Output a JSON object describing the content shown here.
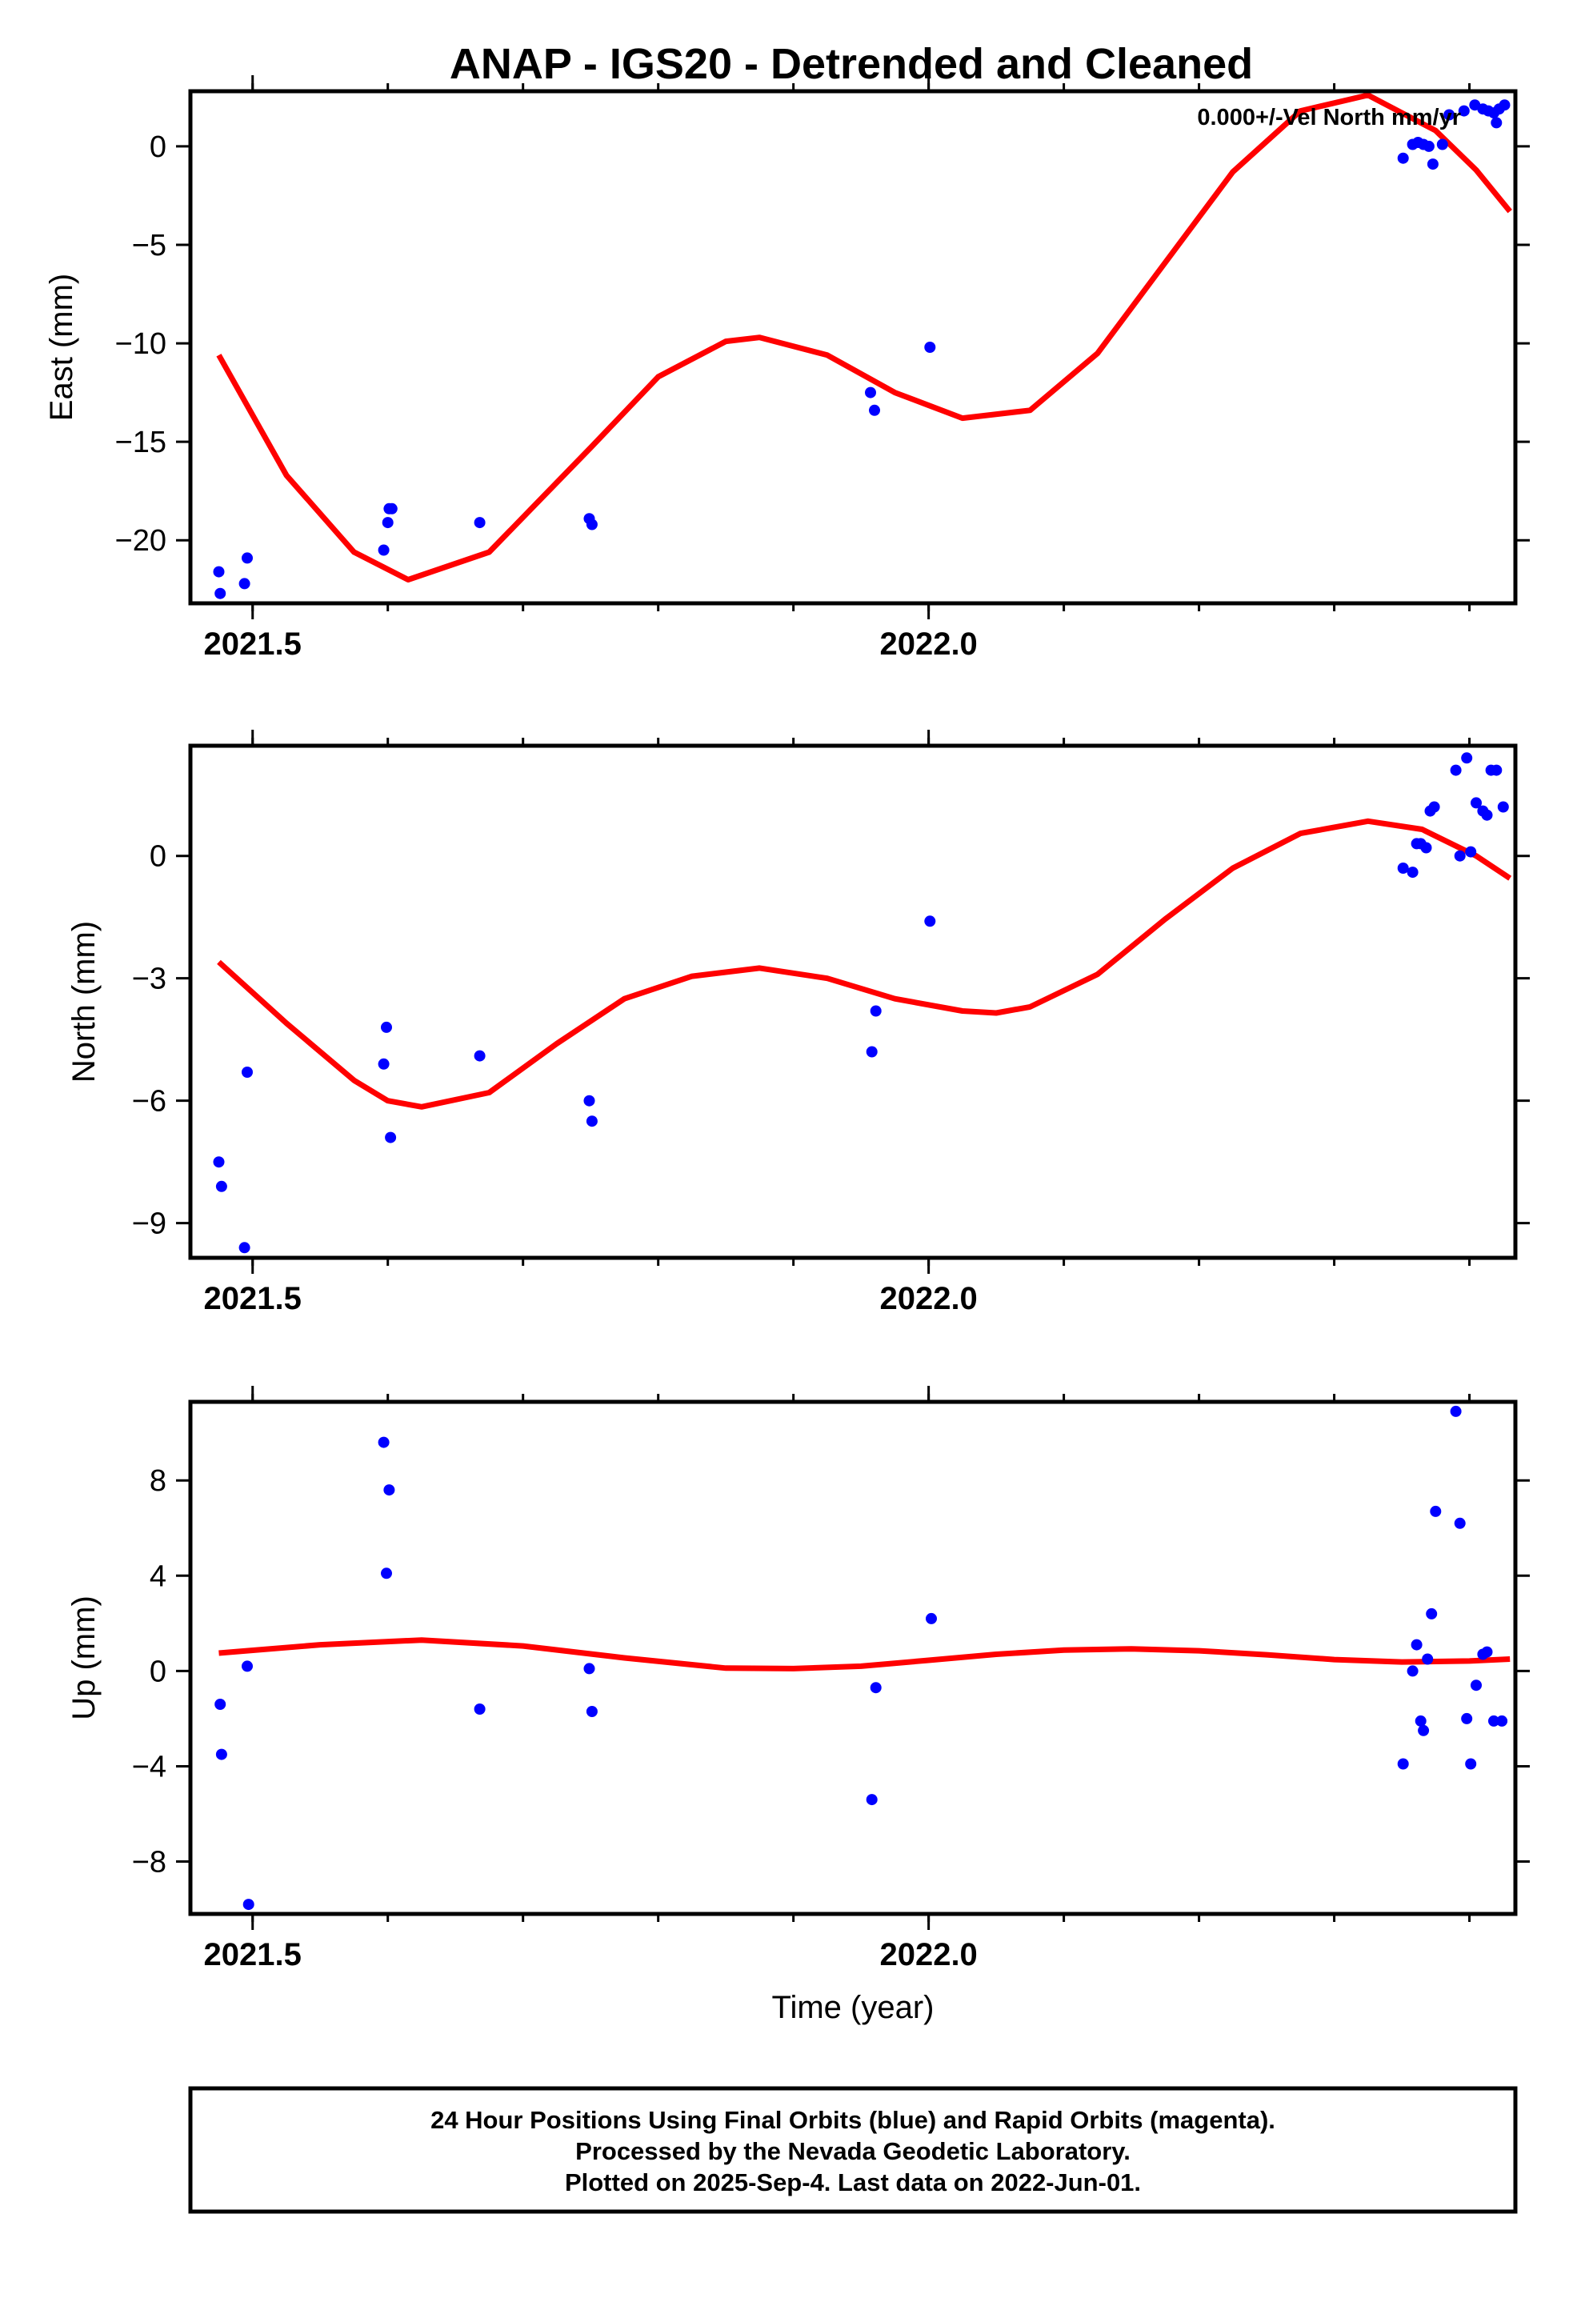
{
  "title": "ANAP - IGS20 - Detrended and Cleaned",
  "footer": {
    "lines": [
      "24 Hour Positions Using Final Orbits (blue) and Rapid Orbits (magenta).",
      "Processed by the Nevada Geodetic Laboratory.",
      "Plotted on 2025-Sep-4. Last data on 2022-Jun-01."
    ]
  },
  "colors": {
    "points": "#0000ff",
    "fit": "#ff0000",
    "axes": "#000000"
  },
  "chart_data": [
    {
      "type": "scatter",
      "ylabel": "East (mm)",
      "xlabel": "",
      "annotation": "0.000+/-Vel North mm/yr",
      "xlim": [
        2021.454,
        2022.434
      ],
      "ylim": [
        -23.2,
        2.8
      ],
      "xticks": [
        2021.5,
        2022.0
      ],
      "yticks": [
        -20,
        -15,
        -10,
        -5,
        0
      ],
      "series": [
        {
          "kind": "points",
          "x": [
            2021.475,
            2021.476,
            2021.494,
            2021.496,
            2021.597,
            2021.6,
            2021.601,
            2021.603,
            2021.668,
            2021.749,
            2021.751,
            2021.957,
            2021.96,
            2022.001,
            2022.351,
            2022.358,
            2022.362,
            2022.366,
            2022.37,
            2022.373,
            2022.38,
            2022.385,
            2022.396,
            2022.404,
            2022.41,
            2022.414,
            2022.418,
            2022.42,
            2022.422,
            2022.426
          ],
          "y": [
            -21.6,
            -22.7,
            -22.2,
            -20.9,
            -20.5,
            -19.1,
            -18.4,
            -18.4,
            -19.1,
            -18.9,
            -19.2,
            -12.5,
            -13.4,
            -10.2,
            -0.6,
            0.1,
            0.2,
            0.1,
            0.0,
            -0.9,
            0.1,
            1.6,
            1.8,
            2.1,
            1.9,
            1.8,
            1.7,
            1.2,
            1.9,
            2.1
          ]
        },
        {
          "kind": "fit",
          "x": [
            2021.475,
            2021.525,
            2021.575,
            2021.615,
            2021.675,
            2021.75,
            2021.8,
            2021.85,
            2021.875,
            2021.925,
            2021.975,
            2022.025,
            2022.075,
            2022.125,
            2022.175,
            2022.225,
            2022.275,
            2022.325,
            2022.375,
            2022.405,
            2022.43
          ],
          "y": [
            -10.6,
            -16.7,
            -20.6,
            -22.0,
            -20.6,
            -15.3,
            -11.7,
            -9.9,
            -9.7,
            -10.6,
            -12.5,
            -13.8,
            -13.4,
            -10.5,
            -5.9,
            -1.3,
            1.8,
            2.6,
            0.8,
            -1.2,
            -3.3
          ]
        }
      ]
    },
    {
      "type": "scatter",
      "ylabel": "North (mm)",
      "xlabel": "",
      "xlim": [
        2021.454,
        2022.434
      ],
      "ylim": [
        -9.85,
        2.7
      ],
      "xticks": [
        2021.5,
        2022.0
      ],
      "yticks": [
        -9,
        -6,
        -3,
        0
      ],
      "series": [
        {
          "kind": "points",
          "x": [
            2021.475,
            2021.477,
            2021.494,
            2021.496,
            2021.597,
            2021.599,
            2021.602,
            2021.668,
            2021.749,
            2021.751,
            2021.958,
            2021.961,
            2022.001,
            2022.351,
            2022.358,
            2022.361,
            2022.364,
            2022.368,
            2022.371,
            2022.374,
            2022.39,
            2022.393,
            2022.398,
            2022.401,
            2022.405,
            2022.41,
            2022.413,
            2022.416,
            2022.42,
            2022.425
          ],
          "y": [
            -7.5,
            -8.1,
            -9.6,
            -5.3,
            -5.1,
            -4.2,
            -6.9,
            -4.9,
            -6.0,
            -6.5,
            -4.8,
            -3.8,
            -1.6,
            -0.3,
            -0.4,
            0.3,
            0.3,
            0.2,
            1.1,
            1.2,
            2.1,
            0.0,
            2.4,
            0.1,
            1.3,
            1.1,
            1.0,
            2.1,
            2.1,
            1.2
          ]
        },
        {
          "kind": "fit",
          "x": [
            2021.475,
            2021.525,
            2021.575,
            2021.6,
            2021.625,
            2021.675,
            2021.725,
            2021.775,
            2021.825,
            2021.875,
            2021.925,
            2021.975,
            2022.025,
            2022.05,
            2022.075,
            2022.125,
            2022.175,
            2022.225,
            2022.275,
            2022.325,
            2022.365,
            2022.405,
            2022.43
          ],
          "y": [
            -2.6,
            -4.1,
            -5.5,
            -6.0,
            -6.15,
            -5.8,
            -4.6,
            -3.5,
            -2.95,
            -2.75,
            -3.0,
            -3.5,
            -3.8,
            -3.85,
            -3.7,
            -2.9,
            -1.55,
            -0.3,
            0.55,
            0.85,
            0.65,
            0.0,
            -0.55
          ]
        }
      ]
    },
    {
      "type": "scatter",
      "ylabel": "Up (mm)",
      "xlabel": "Time (year)",
      "xlim": [
        2021.454,
        2022.434
      ],
      "ylim": [
        -10.2,
        11.3
      ],
      "xticks": [
        2021.5,
        2022.0
      ],
      "yticks": [
        -8,
        -4,
        0,
        4,
        8
      ],
      "series": [
        {
          "kind": "points",
          "x": [
            2021.476,
            2021.477,
            2021.496,
            2021.497,
            2021.597,
            2021.599,
            2021.601,
            2021.668,
            2021.749,
            2021.751,
            2021.958,
            2021.961,
            2022.002,
            2022.351,
            2022.358,
            2022.361,
            2022.364,
            2022.366,
            2022.369,
            2022.372,
            2022.375,
            2022.39,
            2022.393,
            2022.398,
            2022.401,
            2022.405,
            2022.41,
            2022.413,
            2022.418,
            2022.424
          ],
          "y": [
            -1.4,
            -3.5,
            0.2,
            -9.8,
            9.6,
            4.1,
            7.6,
            -1.6,
            0.1,
            -1.7,
            -5.4,
            -0.7,
            2.2,
            -3.9,
            0.0,
            1.1,
            -2.1,
            -2.5,
            0.5,
            2.4,
            6.7,
            10.9,
            6.2,
            -2.0,
            -3.9,
            -0.6,
            0.7,
            0.8,
            -2.1,
            -2.1
          ]
        },
        {
          "kind": "fit",
          "x": [
            2021.475,
            2021.55,
            2021.625,
            2021.7,
            2021.775,
            2021.85,
            2021.9,
            2021.95,
            2022.0,
            2022.05,
            2022.1,
            2022.15,
            2022.2,
            2022.25,
            2022.3,
            2022.35,
            2022.4,
            2022.43
          ],
          "y": [
            0.75,
            1.1,
            1.3,
            1.05,
            0.55,
            0.12,
            0.1,
            0.2,
            0.45,
            0.7,
            0.88,
            0.93,
            0.85,
            0.68,
            0.48,
            0.38,
            0.42,
            0.5
          ]
        }
      ]
    }
  ]
}
